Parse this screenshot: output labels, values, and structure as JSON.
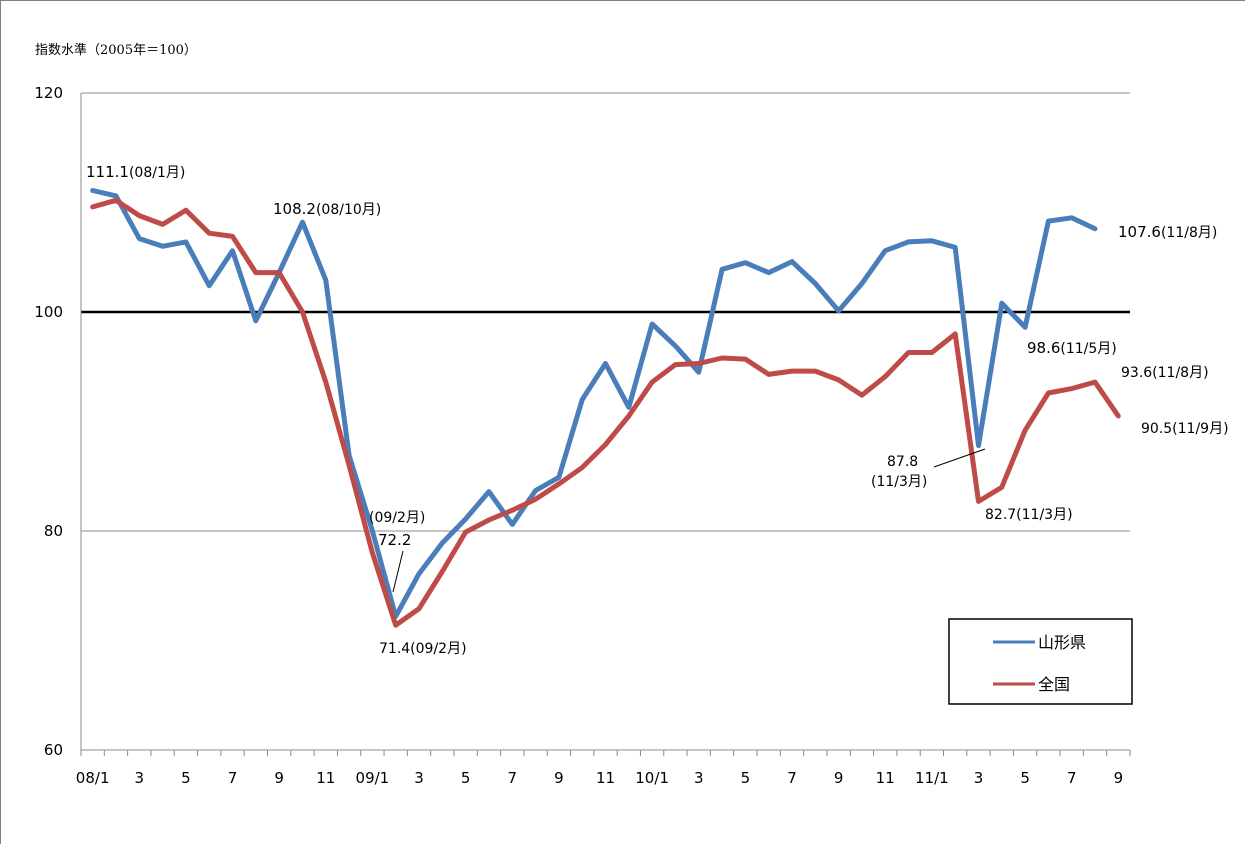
{
  "chart_data": {
    "type": "line",
    "unit_label": "指数水準（2005年＝100）",
    "ylim": [
      60,
      120
    ],
    "y_ticks": [
      60,
      80,
      100,
      120
    ],
    "reference_line": 100,
    "grid": "horizontal",
    "legend_position": "bottom-right",
    "x_tick_labels": [
      "08/1",
      "3",
      "5",
      "7",
      "9",
      "11",
      "09/1",
      "3",
      "5",
      "7",
      "9",
      "11",
      "10/1",
      "3",
      "5",
      "7",
      "9",
      "11",
      "11/1",
      "3",
      "5",
      "7",
      "9"
    ],
    "x": [
      "08/1",
      "08/2",
      "08/3",
      "08/4",
      "08/5",
      "08/6",
      "08/7",
      "08/8",
      "08/9",
      "08/10",
      "08/11",
      "08/12",
      "09/1",
      "09/2",
      "09/3",
      "09/4",
      "09/5",
      "09/6",
      "09/7",
      "09/8",
      "09/9",
      "09/10",
      "09/11",
      "09/12",
      "10/1",
      "10/2",
      "10/3",
      "10/4",
      "10/5",
      "10/6",
      "10/7",
      "10/8",
      "10/9",
      "10/10",
      "10/11",
      "10/12",
      "11/1",
      "11/2",
      "11/3",
      "11/4",
      "11/5",
      "11/6",
      "11/7",
      "11/8",
      "11/9"
    ],
    "series": [
      {
        "name": "山形県",
        "color": "#4a7ebb",
        "values": [
          111.1,
          110.6,
          106.7,
          106.0,
          106.4,
          102.4,
          105.6,
          99.2,
          103.6,
          108.2,
          102.9,
          86.9,
          80.0,
          72.2,
          76.1,
          78.9,
          81.1,
          83.6,
          80.6,
          83.7,
          84.9,
          92.0,
          95.3,
          91.3,
          98.9,
          96.9,
          94.5,
          103.9,
          104.5,
          103.6,
          104.6,
          102.6,
          100.1,
          102.6,
          105.6,
          106.4,
          106.5,
          105.9,
          87.8,
          100.8,
          98.6,
          108.3,
          108.6,
          107.6,
          null
        ]
      },
      {
        "name": "全国",
        "color": "#be4b48",
        "values": [
          109.6,
          110.2,
          108.8,
          108.0,
          109.3,
          107.2,
          106.9,
          103.6,
          103.6,
          100.0,
          93.6,
          86.0,
          78.0,
          71.4,
          72.9,
          76.3,
          79.9,
          81.0,
          81.9,
          82.9,
          84.3,
          85.8,
          87.9,
          90.5,
          93.6,
          95.2,
          95.3,
          95.8,
          95.7,
          94.3,
          94.6,
          94.6,
          93.8,
          92.4,
          94.1,
          96.3,
          96.3,
          98.0,
          82.7,
          84.0,
          89.2,
          92.6,
          93.0,
          93.6,
          90.5
        ]
      }
    ],
    "annotations": [
      {
        "text_main": "111.1",
        "text_note": "(08/1月)"
      },
      {
        "text_main": "108.2",
        "text_note": "(08/10月)"
      },
      {
        "text_main": "107.6",
        "text_note": "(11/8月)"
      },
      {
        "text_main": "98.6",
        "text_note": "(11/5月)"
      },
      {
        "text_main": "93.6",
        "text_note": "(11/8月)"
      },
      {
        "text_main": "90.5",
        "text_note": "(11/9月)"
      },
      {
        "text_main": "87.8",
        "text_note": "(11/3月)"
      },
      {
        "text_main": "82.7",
        "text_note": "(11/3月)"
      },
      {
        "text_main": "72.2",
        "text_note": "(09/2月)"
      },
      {
        "text_main": "71.4",
        "text_note": "(09/2月)"
      }
    ]
  }
}
